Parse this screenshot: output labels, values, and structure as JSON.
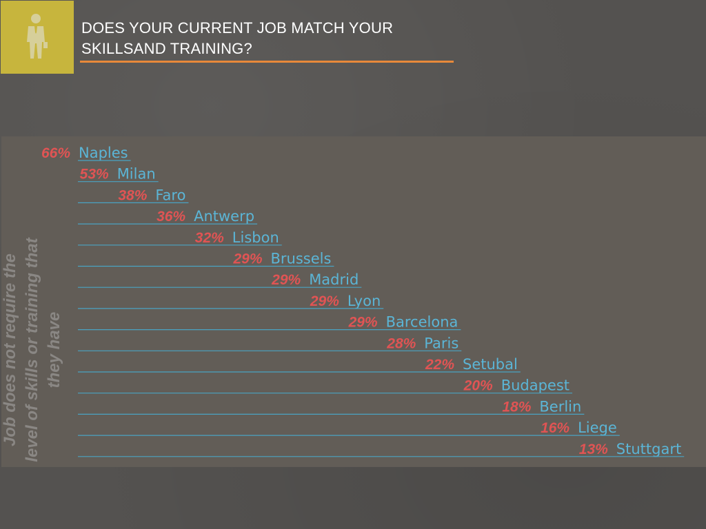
{
  "slide": {
    "title_line1": "DOES YOUR CURRENT JOB MATCH YOUR",
    "title_line2": "SKILLSAND TRAINING?",
    "icon": "businessman-icon",
    "colors": {
      "background": "#545250",
      "panel": "#625d57",
      "icon_box": "#c7b53d",
      "title_rule": "#e8893a",
      "percent_text": "#e05454",
      "city_text": "#5bb5d6",
      "guide_line": "#4aa4c4"
    }
  },
  "chart_data": {
    "type": "bar",
    "title": "DOES YOUR CURRENT JOB MATCH YOUR SKILLSAND TRAINING?",
    "ylabel": "Job does not require the level of skills or training that they have",
    "xlabel": "",
    "value_suffix": "%",
    "categories": [
      "Naples",
      "Milan",
      "Faro",
      "Antwerp",
      "Lisbon",
      "Brussels",
      "Madrid",
      "Lyon",
      "Barcelona",
      "Paris",
      "Setubal",
      "Budapest",
      "Berlin",
      "Liege",
      "Stuttgart"
    ],
    "values": [
      66,
      53,
      38,
      36,
      32,
      29,
      29,
      29,
      29,
      28,
      22,
      20,
      18,
      16,
      13
    ],
    "labels": [
      "66%",
      "53%",
      "38%",
      "36%",
      "32%",
      "29%",
      "29%",
      "29%",
      "29%",
      "28%",
      "22%",
      "20%",
      "18%",
      "16%",
      "13%"
    ],
    "grid": false,
    "legend": "none"
  }
}
